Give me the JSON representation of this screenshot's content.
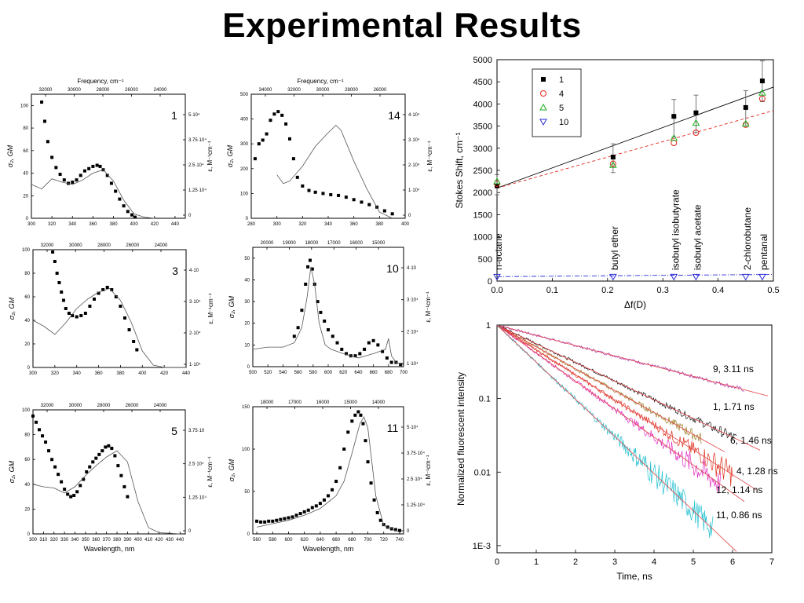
{
  "page_title": "Experimental Results",
  "chart_data": [
    {
      "id": "panel-1",
      "type": "scatter",
      "panel_label": "1",
      "top_axis_label": "Frequency, cm⁻¹",
      "top_ticks": [
        "32000",
        "30000",
        "28000",
        "26000",
        "24000"
      ],
      "ylabel": "σ₂, GM",
      "ylabel_right": "ε, M⁻¹cm⁻¹",
      "xticks": [
        "300",
        "320",
        "340",
        "360",
        "380",
        "400",
        "420",
        "440"
      ],
      "yticks": [
        "0",
        "20",
        "40",
        "60",
        "80",
        "100"
      ],
      "rticks": [
        "0",
        "1.25·10⁴",
        "2.5·10⁴",
        "3.75·10⁴",
        "5·10⁴"
      ],
      "xlim": [
        300,
        450
      ],
      "ylim": [
        0,
        110
      ],
      "series": [
        {
          "style": "points",
          "x": [
            310,
            313,
            316,
            320,
            324,
            328,
            332,
            336,
            340,
            344,
            348,
            352,
            356,
            360,
            364,
            367,
            370,
            374,
            378,
            382,
            386,
            390,
            394,
            398,
            401
          ],
          "y": [
            103,
            86,
            68,
            54,
            45,
            39,
            34,
            31,
            32,
            34,
            38,
            42,
            44,
            46,
            47,
            46,
            43,
            38,
            31,
            24,
            17,
            11,
            6,
            3,
            1
          ]
        },
        {
          "style": "line",
          "x": [
            300,
            310,
            320,
            330,
            340,
            350,
            360,
            370,
            380,
            390,
            400,
            410,
            420
          ],
          "y": [
            30,
            26,
            35,
            32,
            30,
            34,
            40,
            43,
            33,
            16,
            4,
            1,
            0
          ]
        }
      ]
    },
    {
      "id": "panel-14",
      "type": "scatter",
      "panel_label": "14",
      "top_axis_label": "Frequency, cm⁻¹",
      "top_ticks": [
        "34000",
        "32000",
        "30000",
        "28000",
        "26000"
      ],
      "ylabel": "σ₂, GM",
      "ylabel_right": "ε, M⁻¹cm⁻¹",
      "xticks": [
        "280",
        "300",
        "320",
        "340",
        "360",
        "380",
        "400"
      ],
      "yticks": [
        "0",
        "100",
        "200",
        "300",
        "400",
        "500"
      ],
      "rticks": [
        "0",
        "1·10⁴",
        "2·10⁴",
        "3·10⁴",
        "4·10⁴"
      ],
      "xlim": [
        280,
        400
      ],
      "ylim": [
        0,
        500
      ],
      "series": [
        {
          "style": "points",
          "x": [
            283,
            286,
            289,
            292,
            295,
            298,
            301,
            304,
            307,
            310,
            313,
            316,
            320,
            325,
            330,
            336,
            342,
            348,
            354,
            360,
            366,
            372,
            378,
            384,
            390
          ],
          "y": [
            240,
            300,
            315,
            340,
            395,
            420,
            430,
            415,
            380,
            320,
            240,
            165,
            130,
            112,
            105,
            100,
            95,
            92,
            85,
            75,
            65,
            55,
            45,
            30,
            18
          ]
        },
        {
          "style": "line",
          "x": [
            300,
            305,
            310,
            320,
            330,
            340,
            346,
            350,
            360,
            370,
            380,
            390
          ],
          "y": [
            175,
            140,
            150,
            210,
            290,
            345,
            375,
            355,
            230,
            120,
            25,
            0
          ]
        }
      ]
    },
    {
      "id": "panel-3",
      "type": "scatter",
      "panel_label": "3",
      "top_ticks": [
        "32000",
        "30000",
        "28000",
        "26000",
        "24000"
      ],
      "ylabel": "σ₂, GM",
      "ylabel_right": "ε, M⁻¹cm⁻¹",
      "xticks": [
        "300",
        "320",
        "340",
        "360",
        "380",
        "400",
        "420",
        "440"
      ],
      "yticks": [
        "0",
        "20",
        "40",
        "60",
        "80",
        "100"
      ],
      "rticks": [
        "1·10⁴",
        "2·10⁴",
        "3·10⁴",
        "4·10"
      ],
      "xlim": [
        300,
        440
      ],
      "ylim": [
        0,
        100
      ],
      "series": [
        {
          "style": "points",
          "x": [
            318,
            320,
            322,
            324,
            326,
            328,
            330,
            333,
            336,
            340,
            344,
            348,
            352,
            356,
            360,
            364,
            368,
            372,
            376,
            380,
            384,
            388,
            392,
            395
          ],
          "y": [
            98,
            90,
            80,
            72,
            64,
            57,
            50,
            46,
            44,
            43,
            44,
            46,
            52,
            58,
            63,
            66,
            68,
            66,
            60,
            52,
            42,
            32,
            22,
            15
          ]
        },
        {
          "style": "line",
          "x": [
            300,
            310,
            320,
            330,
            340,
            350,
            360,
            370,
            380,
            390,
            400,
            410,
            420,
            440
          ],
          "y": [
            40,
            35,
            28,
            38,
            50,
            58,
            64,
            67,
            57,
            38,
            14,
            2,
            0,
            0
          ]
        }
      ]
    },
    {
      "id": "panel-10",
      "type": "scatter",
      "panel_label": "10",
      "top_ticks": [
        "20000",
        "19000",
        "18000",
        "17000",
        "16000",
        "15000"
      ],
      "ylabel": "σ₂, GM",
      "ylabel_right": "ε, M⁻¹cm⁻¹",
      "xticks": [
        "500",
        "520",
        "540",
        "560",
        "580",
        "600",
        "620",
        "640",
        "660",
        "680",
        "700"
      ],
      "yticks": [
        "0",
        "10",
        "20",
        "30",
        "40",
        "50"
      ],
      "rticks": [
        "1·10⁴",
        "2·10⁴",
        "3·10⁴",
        "4·10"
      ],
      "xlim": [
        500,
        700
      ],
      "ylim": [
        0,
        55
      ],
      "series": [
        {
          "style": "points",
          "x": [
            555,
            560,
            565,
            570,
            573,
            576,
            579,
            582,
            586,
            590,
            595,
            600,
            606,
            612,
            618,
            624,
            630,
            636,
            642,
            648,
            654,
            660,
            666,
            672,
            678,
            684,
            690,
            696
          ],
          "y": [
            14,
            18,
            26,
            38,
            46,
            49,
            45,
            38,
            30,
            25,
            21,
            17,
            14,
            11,
            8,
            6,
            5,
            5,
            6,
            8,
            11,
            12,
            10,
            7,
            4,
            2,
            2,
            1
          ]
        },
        {
          "style": "line",
          "x": [
            500,
            520,
            540,
            555,
            565,
            572,
            577,
            582,
            588,
            596,
            604,
            620,
            640,
            660,
            676,
            680,
            684,
            690,
            700
          ],
          "y": [
            8,
            9,
            9,
            11,
            18,
            32,
            46,
            38,
            20,
            10,
            8,
            6,
            4,
            6,
            8,
            13,
            5,
            2,
            1
          ]
        }
      ]
    },
    {
      "id": "panel-5",
      "type": "scatter",
      "panel_label": "5",
      "top_ticks": [
        "32000",
        "30000",
        "28000",
        "26000",
        "24000"
      ],
      "ylabel": "σ₂, GM",
      "ylabel_right": "ε, M⁻¹cm⁻¹",
      "xlabel": "Wavelength, nm",
      "xticks": [
        "300",
        "310",
        "320",
        "330",
        "340",
        "350",
        "360",
        "370",
        "380",
        "390",
        "400",
        "410",
        "420",
        "430",
        "440"
      ],
      "yticks": [
        "0",
        "20",
        "40",
        "60",
        "80",
        "100"
      ],
      "rticks": [
        "0",
        "1.25·10⁴",
        "2.5·10⁴",
        "3.75·10"
      ],
      "xlim": [
        300,
        445
      ],
      "ylim": [
        0,
        100
      ],
      "series": [
        {
          "style": "points",
          "x": [
            300,
            303,
            306,
            309,
            312,
            315,
            318,
            321,
            324,
            327,
            330,
            333,
            336,
            339,
            342,
            345,
            348,
            351,
            354,
            357,
            360,
            363,
            366,
            369,
            372,
            375,
            378,
            381,
            384,
            387,
            390
          ],
          "y": [
            95,
            90,
            84,
            79,
            74,
            67,
            60,
            54,
            48,
            42,
            36,
            32,
            30,
            31,
            34,
            39,
            44,
            50,
            54,
            58,
            61,
            64,
            67,
            70,
            71,
            69,
            63,
            55,
            47,
            38,
            30
          ]
        },
        {
          "style": "line",
          "x": [
            300,
            310,
            320,
            330,
            340,
            350,
            360,
            370,
            380,
            390,
            400,
            410,
            420,
            440
          ],
          "y": [
            40,
            38,
            37,
            33,
            38,
            47,
            55,
            62,
            67,
            58,
            26,
            5,
            1,
            0
          ]
        }
      ]
    },
    {
      "id": "panel-11",
      "type": "scatter",
      "panel_label": "11",
      "top_ticks": [
        "18000",
        "17000",
        "16000",
        "15000",
        "14000"
      ],
      "ylabel": "σ₂, GM",
      "ylabel_right": "ε, M⁻¹cm⁻¹",
      "xlabel": "Wavelength, nm",
      "xticks": [
        "560",
        "580",
        "600",
        "620",
        "640",
        "660",
        "680",
        "700",
        "720",
        "740"
      ],
      "yticks": [
        "0",
        "50",
        "100",
        "150"
      ],
      "rticks": [
        "0",
        "1.25·10⁴",
        "2.5·10⁴",
        "3.75·10⁴",
        "5·10⁴"
      ],
      "xlim": [
        555,
        745
      ],
      "ylim": [
        0,
        150
      ],
      "series": [
        {
          "style": "points",
          "x": [
            560,
            565,
            570,
            575,
            580,
            585,
            590,
            595,
            600,
            605,
            610,
            615,
            620,
            625,
            630,
            635,
            640,
            645,
            650,
            655,
            660,
            665,
            670,
            675,
            680,
            684,
            688,
            691,
            694,
            697,
            700,
            704,
            708,
            712,
            716,
            720,
            725,
            730,
            735,
            740
          ],
          "y": [
            15,
            14,
            14,
            15,
            15,
            16,
            17,
            18,
            19,
            20,
            22,
            24,
            26,
            28,
            31,
            33,
            36,
            40,
            45,
            52,
            62,
            78,
            100,
            120,
            133,
            140,
            144,
            140,
            130,
            110,
            85,
            60,
            40,
            25,
            16,
            11,
            8,
            6,
            5,
            4
          ]
        },
        {
          "style": "line",
          "x": [
            560,
            580,
            600,
            620,
            640,
            660,
            670,
            680,
            690,
            695,
            700,
            705,
            710,
            720,
            740
          ],
          "y": [
            8,
            12,
            16,
            22,
            30,
            45,
            62,
            95,
            130,
            138,
            125,
            85,
            45,
            10,
            2
          ]
        }
      ]
    },
    {
      "id": "stokes-shift",
      "type": "scatter",
      "xlabel": "Δf(D)",
      "ylabel": "Stokes Shift, cm⁻¹",
      "xlim": [
        0.0,
        0.5
      ],
      "ylim": [
        0,
        5000
      ],
      "xticks": [
        "0.0",
        "0.1",
        "0.2",
        "0.3",
        "0.4",
        "0.5"
      ],
      "yticks": [
        "0",
        "500",
        "1000",
        "1500",
        "2000",
        "2500",
        "3000",
        "3500",
        "4000",
        "4500",
        "5000"
      ],
      "legend_position": "top-left",
      "series": [
        {
          "name": "1",
          "marker": "filled-square",
          "color": "#000000",
          "x": [
            0.0,
            0.21,
            0.32,
            0.36,
            0.45,
            0.48
          ],
          "y": [
            2150,
            2800,
            3720,
            3800,
            3920,
            4520
          ]
        },
        {
          "name": "4",
          "marker": "open-circle",
          "color": "#e3261b",
          "x": [
            0.0,
            0.21,
            0.32,
            0.36,
            0.45,
            0.48
          ],
          "y": [
            2200,
            2650,
            3120,
            3350,
            3530,
            4120
          ]
        },
        {
          "name": "5",
          "marker": "open-triangle-up",
          "color": "#20b020",
          "x": [
            0.0,
            0.21,
            0.32,
            0.36,
            0.45,
            0.48
          ],
          "y": [
            2250,
            2620,
            3230,
            3570,
            3550,
            4250
          ]
        },
        {
          "name": "10",
          "marker": "open-triangle-down",
          "color": "#2a2ad8",
          "x": [
            0.0,
            0.21,
            0.32,
            0.36,
            0.45,
            0.48
          ],
          "y": [
            100,
            100,
            100,
            100,
            100,
            100
          ]
        }
      ],
      "error_bars": {
        "x": [
          0.0,
          0.21,
          0.32,
          0.36,
          0.45,
          0.48
        ],
        "low": [
          1950,
          2450,
          3250,
          3350,
          3500,
          4050
        ],
        "high": [
          2400,
          3100,
          4100,
          4200,
          4300,
          4970
        ]
      },
      "fit_lines": [
        {
          "color": "#000000",
          "dash": "solid",
          "x": [
            0.0,
            0.5
          ],
          "y": [
            2100,
            4380
          ]
        },
        {
          "color": "#e3261b",
          "dash": "dashed",
          "x": [
            0.0,
            0.5
          ],
          "y": [
            2100,
            3850
          ]
        },
        {
          "color": "#2a2ad8",
          "dash": "dashdot",
          "x": [
            0.0,
            0.5
          ],
          "y": [
            100,
            150
          ]
        }
      ],
      "annotations": [
        {
          "text": "n-octane",
          "x": 0.0
        },
        {
          "text": "butyl ether",
          "x": 0.21
        },
        {
          "text": "isobutyl isobutyrate",
          "x": 0.32
        },
        {
          "text": "isobutyl acetate",
          "x": 0.36
        },
        {
          "text": "2-chlorobutane",
          "x": 0.45
        },
        {
          "text": "pentanal",
          "x": 0.48
        }
      ]
    },
    {
      "id": "fluorescence-decay",
      "type": "line",
      "xlabel": "Time, ns",
      "ylabel": "Normalized fluorescent intensity",
      "yscale": "log",
      "xlim": [
        0,
        7
      ],
      "ylim": [
        0.0008,
        1
      ],
      "xticks": [
        "0",
        "1",
        "2",
        "3",
        "4",
        "5",
        "6",
        "7"
      ],
      "yticks": [
        "1E-3",
        "0.01",
        "0.1",
        "1"
      ],
      "series": [
        {
          "name": "9, 3.11 ns",
          "tau": 3.11,
          "tmax": 6.3,
          "color": "#b030b0"
        },
        {
          "name": "1, 1.71 ns",
          "tau": 1.71,
          "tmax": 6.1,
          "color": "#111111"
        },
        {
          "name": "6, 1.46 ns",
          "tau": 1.46,
          "tmax": 5.2,
          "color": "#9a7a20"
        },
        {
          "name": "4, 1.28 ns",
          "tau": 1.28,
          "tmax": 6.0,
          "color": "#e03020"
        },
        {
          "name": "12, 1.14 ns",
          "tau": 1.14,
          "tmax": 5.7,
          "color": "#e030c0"
        },
        {
          "name": "11, 0.86 ns",
          "tau": 0.86,
          "tmax": 5.5,
          "color": "#20c0d0"
        }
      ]
    }
  ]
}
